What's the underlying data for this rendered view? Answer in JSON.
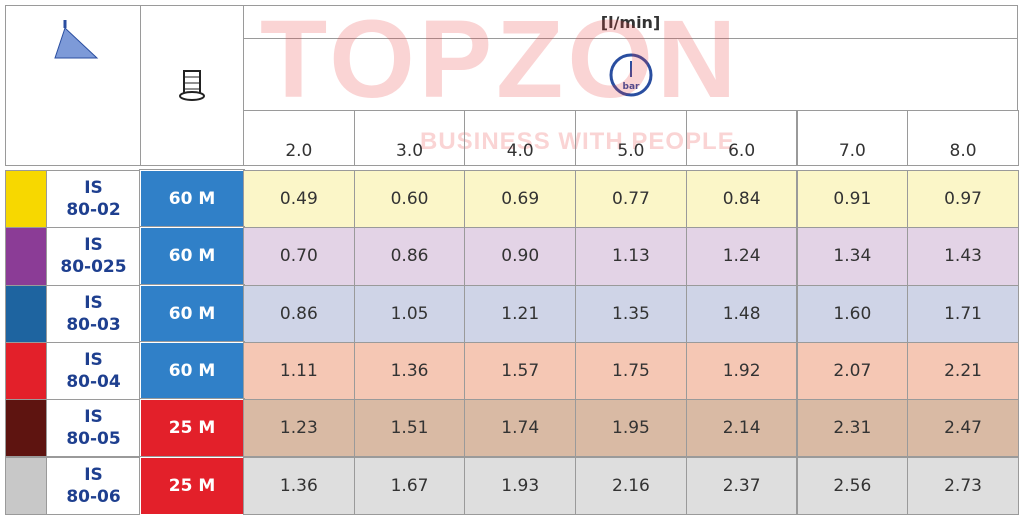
{
  "header": {
    "unit": "[l/min]",
    "gauge_label": "bar",
    "pressures": [
      "2.0",
      "3.0",
      "4.0",
      "5.0",
      "6.0",
      "7.0",
      "8.0"
    ]
  },
  "watermark": {
    "brand": "TOPZON",
    "slogan": "BUSINESS WITH PEOPLE"
  },
  "rows": [
    {
      "color": "#f7d800",
      "background": "#fbf6c8",
      "model": [
        "IS",
        "80-02"
      ],
      "filter": "60 M",
      "filter_color": "#3080c8",
      "values": [
        "0.49",
        "0.60",
        "0.69",
        "0.77",
        "0.84",
        "0.91",
        "0.97"
      ]
    },
    {
      "color": "#8b3c96",
      "background": "#e3d3e6",
      "model": [
        "IS",
        "80-025"
      ],
      "filter": "60 M",
      "filter_color": "#3080c8",
      "values": [
        "0.70",
        "0.86",
        "0.90",
        "1.13",
        "1.24",
        "1.34",
        "1.43"
      ]
    },
    {
      "color": "#1e64a0",
      "background": "#cfd4e7",
      "model": [
        "IS",
        "80-03"
      ],
      "filter": "60 M",
      "filter_color": "#3080c8",
      "values": [
        "0.86",
        "1.05",
        "1.21",
        "1.35",
        "1.48",
        "1.60",
        "1.71"
      ]
    },
    {
      "color": "#e3202a",
      "background": "#f5c7b4",
      "model": [
        "IS",
        "80-04"
      ],
      "filter": "60 M",
      "filter_color": "#3080c8",
      "values": [
        "1.11",
        "1.36",
        "1.57",
        "1.75",
        "1.92",
        "2.07",
        "2.21"
      ]
    },
    {
      "color": "#5e1410",
      "background": "#d9baa4",
      "model": [
        "IS",
        "80-05"
      ],
      "filter": "25 M",
      "filter_color": "#e3202a",
      "values": [
        "1.23",
        "1.51",
        "1.74",
        "1.95",
        "2.14",
        "2.31",
        "2.47"
      ]
    },
    {
      "color": "#c8c8c8",
      "background": "#dedede",
      "model": [
        "IS",
        "80-06"
      ],
      "filter": "25 M",
      "filter_color": "#e3202a",
      "values": [
        "1.36",
        "1.67",
        "1.93",
        "2.16",
        "2.37",
        "2.56",
        "2.73"
      ]
    }
  ]
}
